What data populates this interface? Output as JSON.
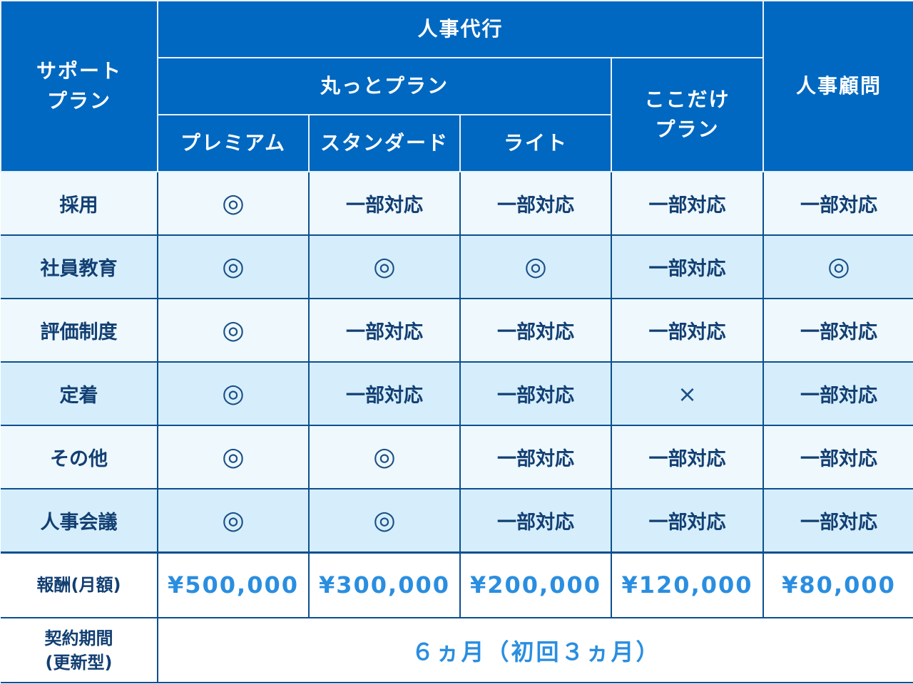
{
  "header": {
    "support_plan": "サポート\nプラン",
    "jinji_daiko": "人事代行",
    "marutto_plan": "丸っとプラン",
    "kokodake_plan": "ここだけ\nプラン",
    "jinji_komon": "人事顧問",
    "premium": "プレミアム",
    "standard": "スタンダード",
    "light": "ライト"
  },
  "rows": [
    {
      "label": "採用",
      "cells": [
        "◎",
        "一部対応",
        "一部対応",
        "一部対応",
        "一部対応"
      ]
    },
    {
      "label": "社員教育",
      "cells": [
        "◎",
        "◎",
        "◎",
        "一部対応",
        "◎"
      ]
    },
    {
      "label": "評価制度",
      "cells": [
        "◎",
        "一部対応",
        "一部対応",
        "一部対応",
        "一部対応"
      ]
    },
    {
      "label": "定着",
      "cells": [
        "◎",
        "一部対応",
        "一部対応",
        "×",
        "一部対応"
      ]
    },
    {
      "label": "その他",
      "cells": [
        "◎",
        "◎",
        "一部対応",
        "一部対応",
        "一部対応"
      ]
    },
    {
      "label": "人事会議",
      "cells": [
        "◎",
        "◎",
        "一部対応",
        "一部対応",
        "一部対応"
      ]
    }
  ],
  "fee": {
    "label": "報酬(月額)",
    "prices": [
      "¥500,000",
      "¥300,000",
      "¥200,000",
      "¥120,000",
      "¥80,000"
    ]
  },
  "contract": {
    "label": "契約期間\n(更新型)",
    "value": "６ヵ月（初回３ヵ月）"
  },
  "colors": {
    "header_bg": "#0068c0",
    "row_light": "#eef8fd",
    "row_blue": "#d6eefb",
    "text_dark": "#123f73",
    "price_blue": "#2a8ee0"
  }
}
